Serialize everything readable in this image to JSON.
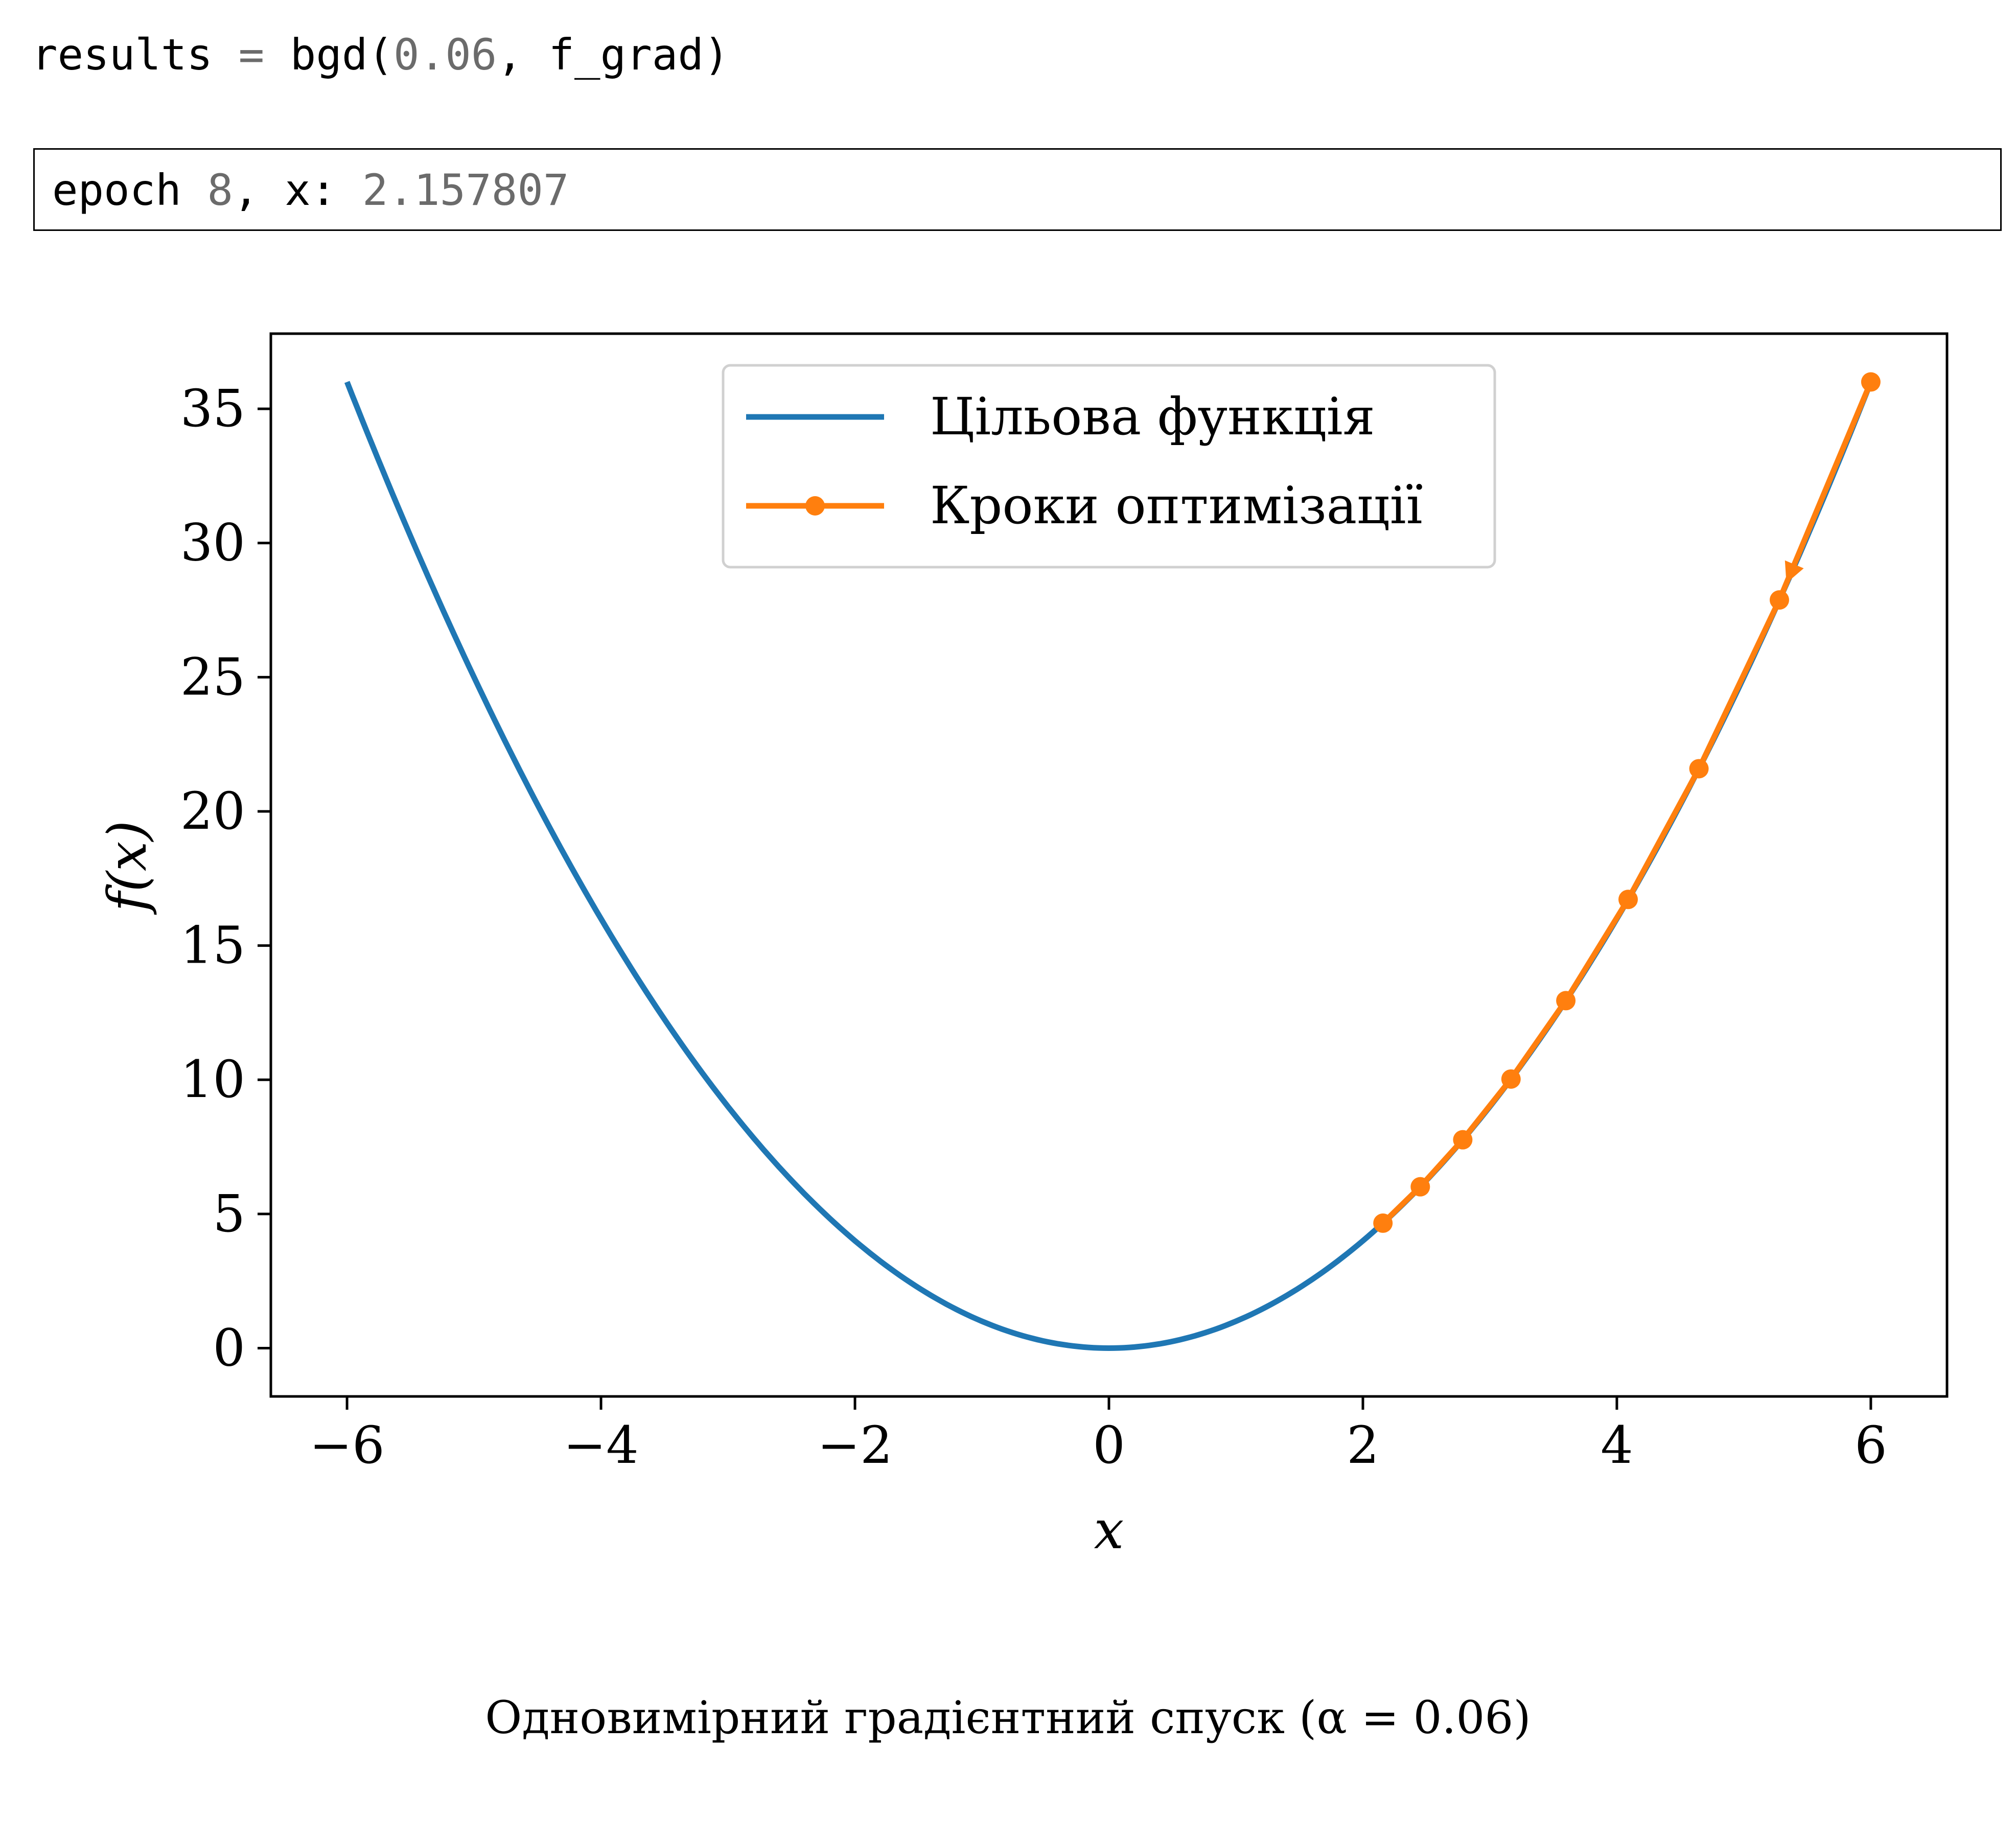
{
  "code": {
    "var": "results",
    "op": "=",
    "fn": "bgd(",
    "arg_num": "0.06",
    "rest": ", f_grad)"
  },
  "output": {
    "label": "epoch",
    "epoch": "8",
    "sep": ", x:",
    "x_value": "2.157807"
  },
  "caption": "Одновимірний градієнтний спуск (α = 0.06)",
  "colors": {
    "objective": "#1f77b4",
    "steps": "#ff7f0e"
  },
  "chart_data": {
    "type": "line",
    "xlabel": "x",
    "ylabel": "f(x)",
    "xlim": [
      -6.6,
      6.6
    ],
    "ylim": [
      -1.8,
      37.8
    ],
    "x_ticks": [
      -6,
      -4,
      -2,
      0,
      2,
      4,
      6
    ],
    "x_tick_labels": [
      "−6",
      "−4",
      "−2",
      "0",
      "2",
      "4",
      "6"
    ],
    "y_ticks": [
      0,
      5,
      10,
      15,
      20,
      25,
      30,
      35
    ],
    "y_tick_labels": [
      "0",
      "5",
      "10",
      "15",
      "20",
      "25",
      "30",
      "35"
    ],
    "legend_position": "top-center",
    "grid": false,
    "series": [
      {
        "name": "Цільова функція",
        "function": "x^2",
        "x_range": [
          -6,
          6
        ],
        "color": "#1f77b4"
      },
      {
        "name": "Кроки оптимізації",
        "color": "#ff7f0e",
        "marker": "circle",
        "x": [
          6.0,
          5.28,
          4.6464,
          4.088832,
          3.598172,
          3.166391,
          2.786424,
          2.452053,
          2.157807
        ],
        "y": [
          36.0,
          27.8784,
          21.589,
          16.7185,
          12.9468,
          10.026,
          7.7642,
          6.0126,
          4.6561
        ]
      }
    ]
  }
}
